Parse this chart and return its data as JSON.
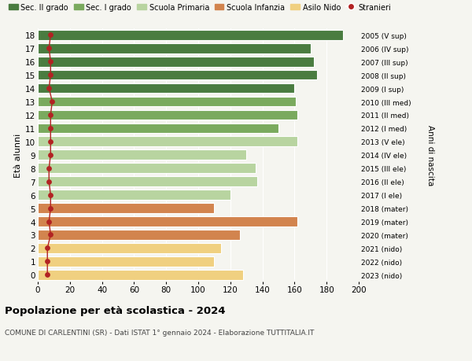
{
  "ages": [
    18,
    17,
    16,
    15,
    14,
    13,
    12,
    11,
    10,
    9,
    8,
    7,
    6,
    5,
    4,
    3,
    2,
    1,
    0
  ],
  "bar_values": [
    190,
    170,
    172,
    174,
    160,
    161,
    162,
    150,
    162,
    130,
    136,
    137,
    120,
    110,
    162,
    126,
    114,
    110,
    128
  ],
  "stranieri_values": [
    8,
    7,
    8,
    8,
    7,
    9,
    8,
    8,
    8,
    8,
    7,
    7,
    8,
    8,
    7,
    8,
    6,
    6,
    6
  ],
  "bar_colors": [
    "#4a7c40",
    "#4a7c40",
    "#4a7c40",
    "#4a7c40",
    "#4a7c40",
    "#7aaa5e",
    "#7aaa5e",
    "#7aaa5e",
    "#b8d4a0",
    "#b8d4a0",
    "#b8d4a0",
    "#b8d4a0",
    "#b8d4a0",
    "#d2844e",
    "#d2844e",
    "#d2844e",
    "#f0d080",
    "#f0d080",
    "#f0d080"
  ],
  "right_labels": [
    "2005 (V sup)",
    "2006 (IV sup)",
    "2007 (III sup)",
    "2008 (II sup)",
    "2009 (I sup)",
    "2010 (III med)",
    "2011 (II med)",
    "2012 (I med)",
    "2013 (V ele)",
    "2014 (IV ele)",
    "2015 (III ele)",
    "2016 (II ele)",
    "2017 (I ele)",
    "2018 (mater)",
    "2019 (mater)",
    "2020 (mater)",
    "2021 (nido)",
    "2022 (nido)",
    "2023 (nido)"
  ],
  "legend_labels": [
    "Sec. II grado",
    "Sec. I grado",
    "Scuola Primaria",
    "Scuola Infanzia",
    "Asilo Nido",
    "Stranieri"
  ],
  "legend_colors": [
    "#4a7c40",
    "#7aaa5e",
    "#b8d4a0",
    "#d2844e",
    "#f0d080",
    "#b22222"
  ],
  "ylabel_left": "Età alunni",
  "ylabel_right": "Anni di nascita",
  "xlim": [
    0,
    200
  ],
  "xticks": [
    0,
    20,
    40,
    60,
    80,
    100,
    120,
    140,
    160,
    180,
    200
  ],
  "title": "Popolazione per età scolastica - 2024",
  "subtitle": "COMUNE DI CARLENTINI (SR) - Dati ISTAT 1° gennaio 2024 - Elaborazione TUTTITALIA.IT",
  "background_color": "#f5f5f0",
  "stranieri_color": "#b22222"
}
